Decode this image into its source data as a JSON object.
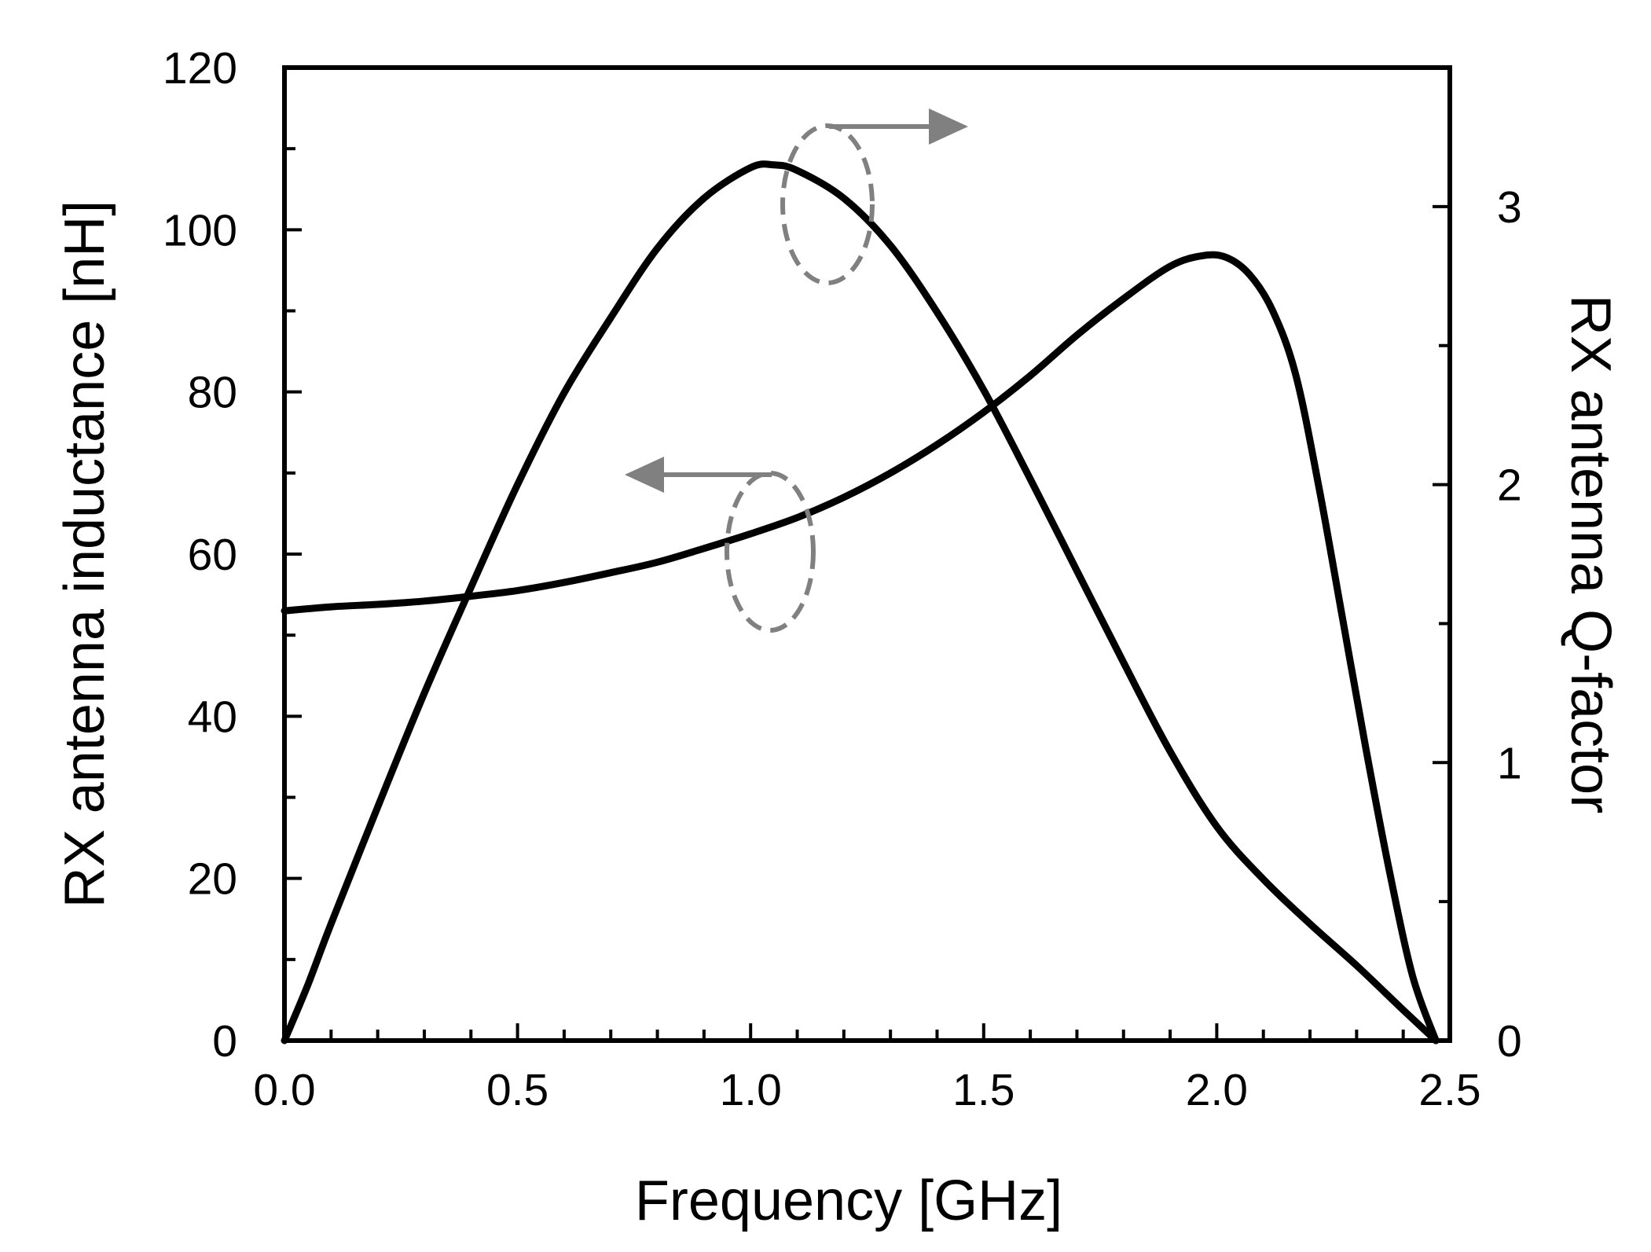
{
  "chart_data": {
    "type": "line",
    "title": "",
    "xlabel": "Frequency [GHz]",
    "ylabel_left": "RX antenna inductance [nH]",
    "ylabel_right": "RX antenna Q-factor",
    "xlim": [
      0,
      2.5
    ],
    "ylim_left": [
      0,
      120
    ],
    "ylim_right": [
      0,
      3.5
    ],
    "x_ticks": [
      "0.0",
      "0.5",
      "1.0",
      "1.5",
      "2.0",
      "2.5"
    ],
    "y_left_ticks": [
      "0",
      "20",
      "40",
      "60",
      "80",
      "100",
      "120"
    ],
    "y_right_ticks": [
      "0",
      "1",
      "2",
      "3"
    ],
    "grid": false,
    "series": [
      {
        "name": "RX antenna inductance",
        "axis": "left",
        "color": "#000000",
        "x": [
          0.0,
          0.1,
          0.2,
          0.3,
          0.4,
          0.5,
          0.6,
          0.7,
          0.8,
          0.9,
          1.0,
          1.1,
          1.2,
          1.3,
          1.4,
          1.5,
          1.6,
          1.7,
          1.8,
          1.9,
          1.97,
          2.02,
          2.07,
          2.12,
          2.17,
          2.22,
          2.27,
          2.32,
          2.37,
          2.42,
          2.47
        ],
        "values": [
          53.0,
          53.5,
          53.8,
          54.2,
          54.8,
          55.5,
          56.5,
          57.7,
          59.0,
          60.7,
          62.5,
          64.5,
          67.0,
          70.0,
          73.5,
          77.5,
          82.0,
          87.0,
          91.5,
          95.5,
          96.8,
          96.6,
          94.5,
          90.0,
          82.0,
          68.0,
          52.0,
          36.0,
          21.0,
          8.0,
          0.0
        ]
      },
      {
        "name": "RX antenna Q-factor",
        "axis": "right",
        "color": "#000000",
        "x": [
          0.0,
          0.05,
          0.1,
          0.2,
          0.3,
          0.4,
          0.5,
          0.6,
          0.7,
          0.8,
          0.9,
          1.0,
          1.05,
          1.1,
          1.2,
          1.3,
          1.4,
          1.5,
          1.6,
          1.7,
          1.8,
          1.9,
          2.0,
          2.1,
          2.2,
          2.3,
          2.4,
          2.47
        ],
        "values": [
          0.0,
          0.2,
          0.42,
          0.84,
          1.25,
          1.63,
          2.0,
          2.33,
          2.6,
          2.85,
          3.03,
          3.14,
          3.15,
          3.13,
          3.03,
          2.86,
          2.62,
          2.34,
          2.02,
          1.69,
          1.36,
          1.04,
          0.77,
          0.58,
          0.42,
          0.27,
          0.11,
          0.0
        ]
      }
    ],
    "annotations": [
      {
        "target": "RX antenna Q-factor",
        "arrow_direction": "right",
        "points_to_axis": "right"
      },
      {
        "target": "RX antenna inductance",
        "arrow_direction": "left",
        "points_to_axis": "left"
      }
    ]
  }
}
